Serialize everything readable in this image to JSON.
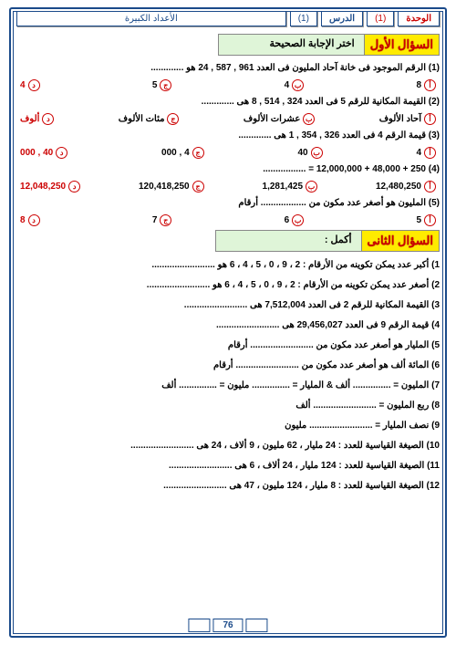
{
  "header": {
    "unit_label": "الوحدة",
    "unit_val": "(1)",
    "lesson_label": "الدرس",
    "lesson_val": "(1)",
    "topic": "الأعداد الكبيرة"
  },
  "s1": {
    "label": "السؤال الأول",
    "title": "اختر الإجابة الصحيحة",
    "q1": "(1) الرقم الموجود فى خانة آحاد المليون فى العدد 961 , 587 , 24  هو .............",
    "q1o": {
      "a": "8",
      "b": "4",
      "c": "5",
      "d": "4"
    },
    "q2": "(2) القيمة المكانية للرقم 5 فى العدد  324 , 514 , 8  هى .............",
    "q2o": {
      "a": "آحاد الألوف",
      "b": "عشرات الألوف",
      "c": "مئات  الألوف",
      "d": "ألوف"
    },
    "q3": "(3) قيمة الرقم 4 فى العدد  326 , 354 , 1  هى .............",
    "q3o": {
      "a": "4",
      "b": "40",
      "c": "4 , 000",
      "d": "40 , 000"
    },
    "q4": "(4) 250 +  48,000 +  12,000,000 = .................",
    "q4o": {
      "a": "12,480,250",
      "b": "1,281,425",
      "c": "120,418,250",
      "d": "12,048,250"
    },
    "q5": "(5) المليون هو أصغر عدد مكون من .................. أرقام",
    "q5o": {
      "a": "5",
      "b": "6",
      "c": "7",
      "d": "8"
    }
  },
  "s2": {
    "label": "السؤال الثانى",
    "title": "أكمل :",
    "l1": "1) أكبر عدد يمكن تكوينه من الأرقام : 2 ، 9 ، 0 ، 5 ، 4 ، 6  هو .........................",
    "l2": "2) أصغر عدد يمكن تكوينه من الأرقام : 2 ، 9 ، 0 ، 5 ، 4 ، 6  هو .........................",
    "l3": "3) القيمة المكانية للرقم 2 فى العدد  7,512,004 هى .........................",
    "l4": "4) قيمة الرقم 9 فى العدد 29,456,027 هى .........................",
    "l5": "5) المليار هو أصغر عدد مكون من ......................... أرقام",
    "l6": "6) المائة ألف هو أصغر عدد مكون من ......................... أرقام",
    "l7": "7) المليون = ............... ألف  &  المليار = ............... مليون = ............... ألف",
    "l8": "8) ربع المليون = ......................... ألف",
    "l9": "9) نصف المليار = ......................... مليون",
    "l10": "10) الصيغة القياسية للعدد : 24 مليار ، 62 مليون ، 9 ألاف ، 24 هى .........................",
    "l11": "11) الصيغة القياسية للعدد : 124 مليار  ، 24 ألاف ، 6 هى .........................",
    "l12": "12) الصيغة القياسية للعدد : 8 مليار ، 124 مليون  ، 47 هى ........................."
  },
  "page": "76"
}
